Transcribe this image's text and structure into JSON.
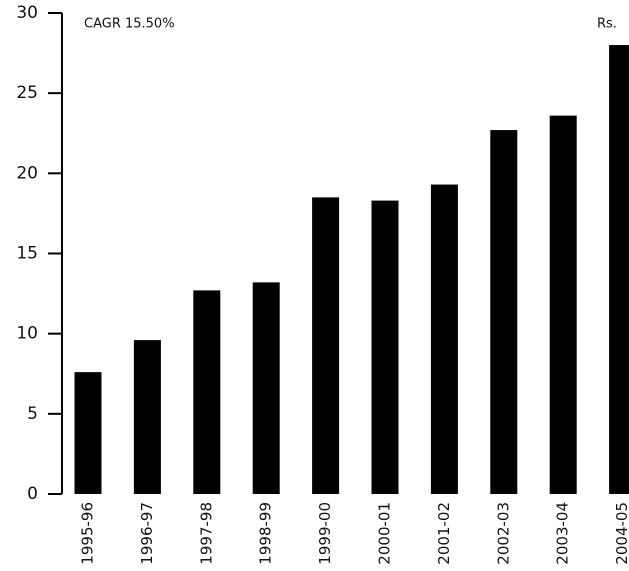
{
  "chart_data": {
    "type": "bar",
    "annotations": [
      "CAGR 15.50%",
      "Rs."
    ],
    "categories": [
      "1995-96",
      "1996-97",
      "1997-98",
      "1998-99",
      "1999-00",
      "2000-01",
      "2001-02",
      "2002-03",
      "2003-04",
      "2004-05"
    ],
    "values": [
      7.6,
      9.6,
      12.7,
      13.2,
      18.5,
      18.3,
      19.3,
      22.7,
      23.6,
      28.0
    ],
    "color": "#000000",
    "ylim": [
      0,
      30
    ],
    "yticks": [
      0,
      5,
      10,
      15,
      20,
      25,
      30
    ],
    "grid": false
  }
}
